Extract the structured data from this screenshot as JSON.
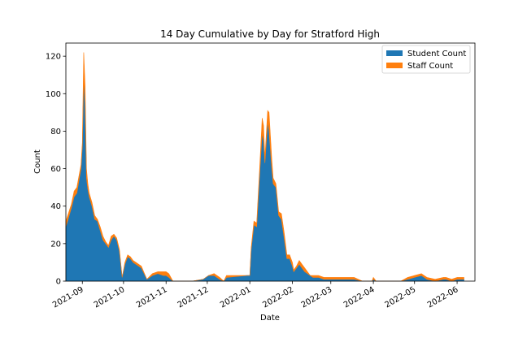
{
  "chart_data": {
    "type": "area",
    "stacked": true,
    "title": "14 Day Cumulative by Day for Stratford High",
    "xlabel": "Date",
    "ylabel": "Count",
    "xlim": [
      "2021-08-20",
      "2022-06-14"
    ],
    "ylim": [
      0,
      127
    ],
    "x_ticks": [
      "2021-09-01",
      "2021-10-01",
      "2021-11-01",
      "2021-12-01",
      "2022-01-01",
      "2022-02-01",
      "2022-03-01",
      "2022-04-01",
      "2022-05-01",
      "2022-06-01"
    ],
    "x_tick_labels": [
      "2021-09",
      "2021-10",
      "2021-11",
      "2021-12",
      "2022-01",
      "2022-02",
      "2022-03",
      "2022-04",
      "2022-05",
      "2022-06"
    ],
    "y_ticks": [
      0,
      20,
      40,
      60,
      80,
      100,
      120
    ],
    "grid": false,
    "legend_position": "top-right",
    "x": [
      "2021-08-20",
      "2021-08-24",
      "2021-08-26",
      "2021-08-28",
      "2021-08-31",
      "2021-09-01",
      "2021-09-02",
      "2021-09-03",
      "2021-09-04",
      "2021-09-05",
      "2021-09-06",
      "2021-09-08",
      "2021-09-10",
      "2021-09-12",
      "2021-09-14",
      "2021-09-16",
      "2021-09-18",
      "2021-09-20",
      "2021-09-22",
      "2021-09-24",
      "2021-09-26",
      "2021-09-28",
      "2021-09-30",
      "2021-10-02",
      "2021-10-04",
      "2021-10-06",
      "2021-10-08",
      "2021-10-10",
      "2021-10-14",
      "2021-10-18",
      "2021-10-22",
      "2021-10-26",
      "2021-10-30",
      "2021-11-01",
      "2021-11-03",
      "2021-11-06",
      "2021-11-10",
      "2021-11-20",
      "2021-11-28",
      "2021-12-02",
      "2021-12-06",
      "2021-12-10",
      "2021-12-13",
      "2021-12-15",
      "2021-12-30",
      "2021-12-31",
      "2022-01-01",
      "2022-01-02",
      "2022-01-04",
      "2022-01-06",
      "2022-01-08",
      "2022-01-10",
      "2022-01-11",
      "2022-01-12",
      "2022-01-14",
      "2022-01-15",
      "2022-01-17",
      "2022-01-18",
      "2022-01-20",
      "2022-01-22",
      "2022-01-24",
      "2022-01-26",
      "2022-01-28",
      "2022-01-30",
      "2022-02-01",
      "2022-02-02",
      "2022-02-04",
      "2022-02-06",
      "2022-02-08",
      "2022-02-10",
      "2022-02-12",
      "2022-02-14",
      "2022-02-16",
      "2022-02-20",
      "2022-02-24",
      "2022-03-01",
      "2022-03-03",
      "2022-03-15",
      "2022-03-18",
      "2022-03-24",
      "2022-03-31",
      "2022-04-01",
      "2022-04-03",
      "2022-04-08",
      "2022-04-21",
      "2022-04-26",
      "2022-05-01",
      "2022-05-06",
      "2022-05-08",
      "2022-05-10",
      "2022-05-16",
      "2022-05-22",
      "2022-05-24",
      "2022-05-28",
      "2022-06-01",
      "2022-06-04",
      "2022-06-06"
    ],
    "series": [
      {
        "name": "Student Count",
        "color": "#1f77b4",
        "values": [
          29,
          39,
          45,
          47,
          60,
          72,
          108,
          95,
          55,
          49,
          45,
          40,
          33,
          32,
          27,
          22,
          20,
          18,
          22,
          24,
          22,
          16,
          2,
          9,
          13,
          12,
          10,
          9,
          7,
          1,
          3,
          4,
          3,
          3,
          2,
          0,
          0,
          0,
          1,
          3,
          3,
          1,
          0,
          2,
          3,
          3,
          3,
          17,
          30,
          29,
          55,
          79,
          75,
          63,
          85,
          80,
          60,
          52,
          50,
          35,
          33,
          23,
          12,
          12,
          8,
          5,
          7,
          9,
          7,
          5,
          4,
          3,
          2,
          2,
          1,
          1,
          1,
          1,
          1,
          0,
          0,
          1,
          0,
          0,
          0,
          1,
          2,
          3,
          2,
          1,
          0,
          1,
          1,
          0,
          1,
          1,
          1
        ],
        "labels": ""
      },
      {
        "name": "Staff Count",
        "color": "#ff7f0e",
        "values": [
          3,
          2,
          3,
          3,
          2,
          2,
          14,
          9,
          5,
          3,
          2,
          2,
          2,
          1,
          2,
          2,
          1,
          1,
          2,
          1,
          1,
          1,
          0,
          1,
          1,
          1,
          1,
          1,
          1,
          0,
          1,
          1,
          2,
          2,
          2,
          0,
          0,
          0,
          0,
          0,
          1,
          1,
          0,
          1,
          0,
          0,
          0,
          1,
          2,
          2,
          3,
          8,
          8,
          3,
          6,
          10,
          5,
          3,
          2,
          2,
          3,
          3,
          2,
          2,
          2,
          1,
          1,
          2,
          2,
          2,
          1,
          0,
          1,
          1,
          1,
          1,
          1,
          1,
          1,
          0,
          0,
          1,
          0,
          0,
          0,
          1,
          1,
          1,
          1,
          1,
          1,
          1,
          1,
          1,
          1,
          1,
          1
        ],
        "labels": ""
      }
    ]
  }
}
